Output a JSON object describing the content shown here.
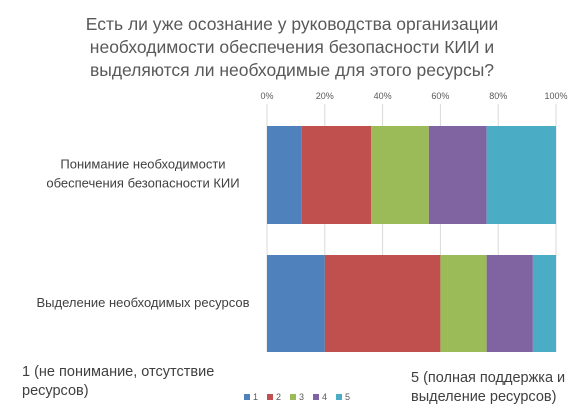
{
  "chart_data": {
    "type": "bar",
    "orientation": "horizontal",
    "stacked": true,
    "percent_scale": true,
    "title_lines": [
      "Есть ли уже осознание у руководства организации",
      "необходимости обеспечения безопасности КИИ и",
      "выделяются ли необходимые для этого ресурсы?"
    ],
    "categories": [
      [
        "Понимание необходимости",
        "обеспечения безопасности КИИ"
      ],
      [
        "Выделение необходимых ресурсов"
      ]
    ],
    "series": [
      {
        "name": "1",
        "values": [
          12,
          20
        ]
      },
      {
        "name": "2",
        "values": [
          24,
          40
        ]
      },
      {
        "name": "3",
        "values": [
          20,
          16
        ]
      },
      {
        "name": "4",
        "values": [
          20,
          16
        ]
      },
      {
        "name": "5",
        "values": [
          24,
          8
        ]
      }
    ],
    "colors": [
      "#4f81bd",
      "#c0504d",
      "#9bbb59",
      "#8064a2",
      "#4bacc6"
    ],
    "xlim": [
      0,
      100
    ],
    "x_ticks": [
      "0%",
      "20%",
      "40%",
      "60%",
      "80%",
      "100%"
    ],
    "x_axis_position": "top",
    "grid": true,
    "legend_position": "bottom"
  },
  "notes": {
    "left": [
      "1 (не понимание, отсутствие",
      "ресурсов)"
    ],
    "right": [
      "5 (полная поддержка и",
      "выделение ресурсов)"
    ]
  }
}
